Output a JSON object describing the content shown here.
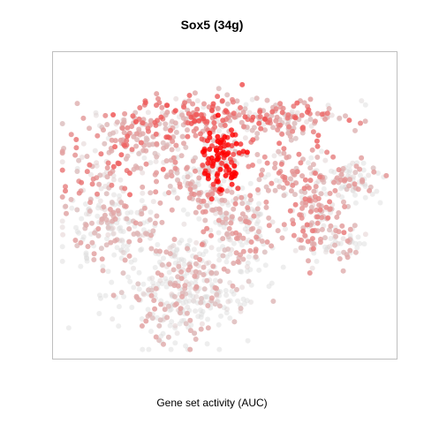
{
  "chart_data": {
    "type": "scatter",
    "title": "Sox5 (34g)",
    "xlabel": "Gene set activity (AUC)",
    "ylabel": "",
    "grid": false,
    "legend": "none",
    "colors": {
      "low": "#d9d9d9",
      "high": "#ff0000",
      "frame": "#bfbfbf"
    },
    "x_range": [
      0,
      100
    ],
    "y_range": [
      0,
      100
    ],
    "value_range": [
      0,
      1
    ],
    "clusters": [
      {
        "x": 49,
        "y": 65,
        "sx": 3,
        "sy": 6,
        "n": 140,
        "auc": 0.88
      },
      {
        "x": 44,
        "y": 78,
        "sx": 11,
        "sy": 4,
        "n": 150,
        "auc": 0.42
      },
      {
        "x": 68,
        "y": 78,
        "sx": 9,
        "sy": 4,
        "n": 130,
        "auc": 0.33
      },
      {
        "x": 25,
        "y": 71,
        "sx": 10,
        "sy": 5,
        "n": 140,
        "auc": 0.32
      },
      {
        "x": 15,
        "y": 59,
        "sx": 7,
        "sy": 5,
        "n": 70,
        "auc": 0.3
      },
      {
        "x": 18,
        "y": 42,
        "sx": 7,
        "sy": 6,
        "n": 180,
        "auc": 0.04
      },
      {
        "x": 38,
        "y": 22,
        "sx": 10,
        "sy": 8,
        "n": 340,
        "auc": 0.02
      },
      {
        "x": 55,
        "y": 43,
        "sx": 7,
        "sy": 7,
        "n": 150,
        "auc": 0.1
      },
      {
        "x": 76,
        "y": 48,
        "sx": 4,
        "sy": 7,
        "n": 110,
        "auc": 0.2
      },
      {
        "x": 88,
        "y": 58,
        "sx": 4,
        "sy": 3,
        "n": 70,
        "auc": 0.08
      },
      {
        "x": 70,
        "y": 60,
        "sx": 6,
        "sy": 4,
        "n": 80,
        "auc": 0.18
      },
      {
        "x": 84,
        "y": 37,
        "sx": 4,
        "sy": 3,
        "n": 50,
        "auc": 0.03
      },
      {
        "x": 38,
        "y": 58,
        "sx": 4,
        "sy": 4,
        "n": 60,
        "auc": 0.12
      },
      {
        "x": 48,
        "y": 50,
        "sx": 5,
        "sy": 5,
        "n": 60,
        "auc": 0.15
      }
    ]
  }
}
